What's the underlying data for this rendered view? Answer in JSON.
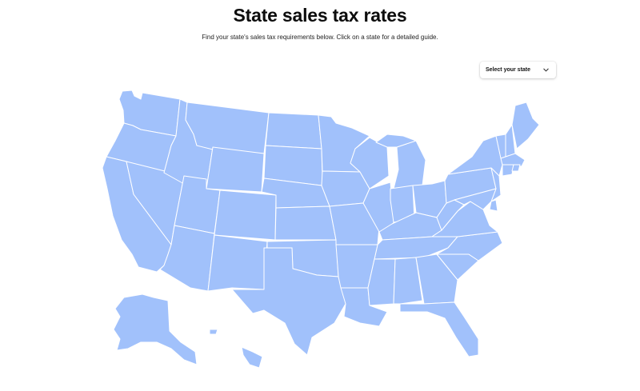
{
  "header": {
    "title": "State sales tax rates",
    "subtitle": "Find your state's sales tax requirements below. Click on a state for a detailed guide."
  },
  "state_select": {
    "label": "Select your state",
    "icon": "chevron-down-icon"
  },
  "map": {
    "fill_color": "#a1c1fb",
    "border_color": "#ffffff"
  }
}
